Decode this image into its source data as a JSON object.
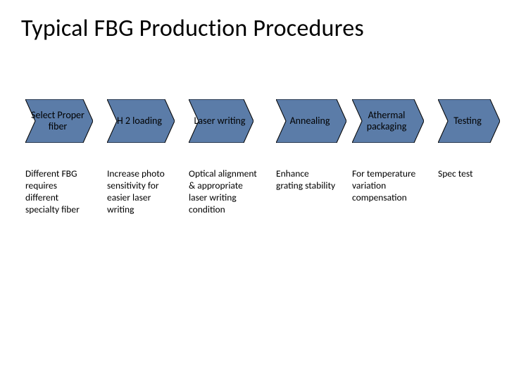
{
  "title": "Typical FBG Production Procedures",
  "diagram": {
    "type": "flowchart",
    "step_fill": "#5b7ca8",
    "step_stroke": "#000000",
    "step_stroke_width": 1,
    "step_height": 62,
    "notch_depth": 14,
    "background": "#ffffff",
    "title_fontsize": 34,
    "label_fontsize": 14,
    "desc_fontsize": 13.5,
    "steps": [
      {
        "label": "Select Proper fiber",
        "width": 96,
        "desc": "Different FBG requires different specialty fiber",
        "desc_width": 98
      },
      {
        "label": "H 2 loading",
        "width": 96,
        "gap": 18,
        "desc": "Increase photo sensitivity for easier laser writing",
        "desc_width": 98
      },
      {
        "label": "Laser writing",
        "width": 92,
        "gap": 18,
        "desc": "Optical alignment & appropriate laser writing condition",
        "desc_width": 108
      },
      {
        "label": "Annealing",
        "width": 100,
        "gap": 16,
        "desc": "Enhance grating stability",
        "desc_width": 92
      },
      {
        "label": "Athermal packaging",
        "width": 102,
        "gap": 8,
        "desc": "For temperature variation compensation",
        "desc_width": 112
      },
      {
        "label": "Testing",
        "width": 88,
        "gap": 10,
        "desc": "Spec test",
        "desc_width": 80
      }
    ]
  }
}
